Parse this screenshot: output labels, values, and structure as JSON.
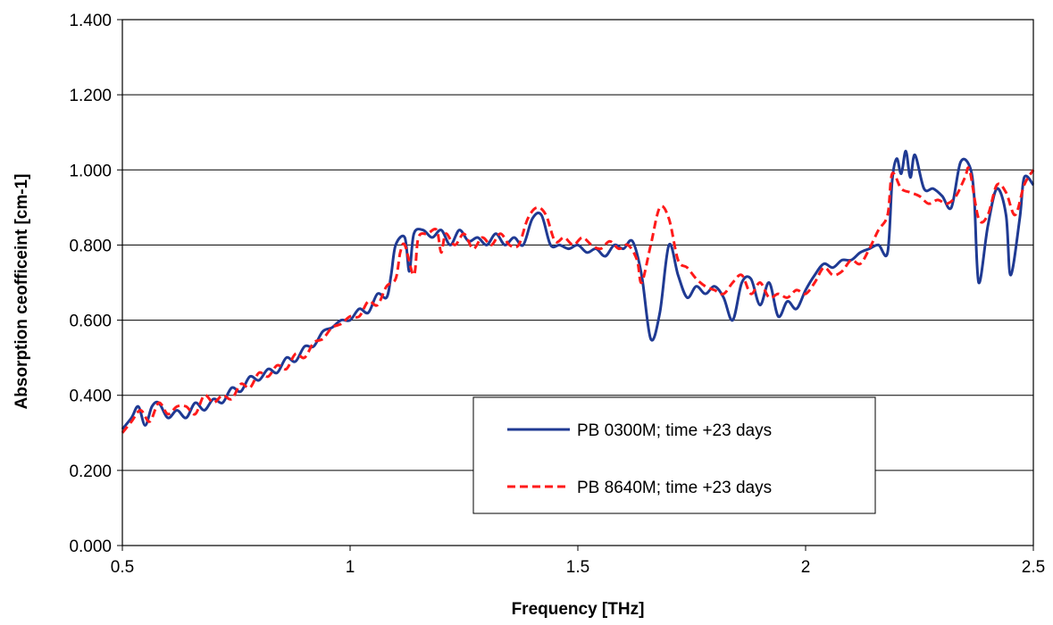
{
  "chart_data": {
    "type": "line",
    "title": "",
    "xlabel": "Frequency [THz]",
    "ylabel": "Absorption ceofficeint [cm-1]",
    "xlim": [
      0.5,
      2.5
    ],
    "ylim": [
      0.0,
      1.4
    ],
    "x_ticks": [
      "0.5",
      "1",
      "1.5",
      "2",
      "2.5"
    ],
    "y_ticks": [
      "0.000",
      "0.200",
      "0.400",
      "0.600",
      "0.800",
      "1.000",
      "1.200",
      "1.400"
    ],
    "grid": "horizontal",
    "legend_position": "bottom-center",
    "series": [
      {
        "name": "PB 0300M; time +23 days",
        "color": "#1f3a93",
        "style": "solid",
        "points": [
          [
            0.5,
            0.31
          ],
          [
            0.52,
            0.34
          ],
          [
            0.535,
            0.37
          ],
          [
            0.55,
            0.32
          ],
          [
            0.565,
            0.37
          ],
          [
            0.58,
            0.38
          ],
          [
            0.6,
            0.34
          ],
          [
            0.62,
            0.36
          ],
          [
            0.64,
            0.34
          ],
          [
            0.66,
            0.38
          ],
          [
            0.68,
            0.36
          ],
          [
            0.7,
            0.39
          ],
          [
            0.72,
            0.38
          ],
          [
            0.74,
            0.42
          ],
          [
            0.76,
            0.41
          ],
          [
            0.78,
            0.45
          ],
          [
            0.8,
            0.44
          ],
          [
            0.82,
            0.47
          ],
          [
            0.84,
            0.46
          ],
          [
            0.86,
            0.5
          ],
          [
            0.88,
            0.49
          ],
          [
            0.9,
            0.53
          ],
          [
            0.92,
            0.53
          ],
          [
            0.94,
            0.57
          ],
          [
            0.96,
            0.58
          ],
          [
            0.98,
            0.6
          ],
          [
            1.0,
            0.6
          ],
          [
            1.02,
            0.63
          ],
          [
            1.04,
            0.62
          ],
          [
            1.06,
            0.67
          ],
          [
            1.08,
            0.66
          ],
          [
            1.09,
            0.72
          ],
          [
            1.1,
            0.8
          ],
          [
            1.12,
            0.82
          ],
          [
            1.13,
            0.73
          ],
          [
            1.14,
            0.83
          ],
          [
            1.16,
            0.84
          ],
          [
            1.18,
            0.82
          ],
          [
            1.2,
            0.84
          ],
          [
            1.22,
            0.8
          ],
          [
            1.24,
            0.84
          ],
          [
            1.26,
            0.81
          ],
          [
            1.28,
            0.82
          ],
          [
            1.3,
            0.8
          ],
          [
            1.32,
            0.83
          ],
          [
            1.34,
            0.8
          ],
          [
            1.36,
            0.82
          ],
          [
            1.38,
            0.8
          ],
          [
            1.4,
            0.87
          ],
          [
            1.42,
            0.88
          ],
          [
            1.44,
            0.8
          ],
          [
            1.46,
            0.8
          ],
          [
            1.48,
            0.79
          ],
          [
            1.5,
            0.8
          ],
          [
            1.52,
            0.78
          ],
          [
            1.54,
            0.79
          ],
          [
            1.56,
            0.77
          ],
          [
            1.58,
            0.8
          ],
          [
            1.6,
            0.79
          ],
          [
            1.62,
            0.81
          ],
          [
            1.64,
            0.72
          ],
          [
            1.66,
            0.55
          ],
          [
            1.68,
            0.62
          ],
          [
            1.7,
            0.8
          ],
          [
            1.72,
            0.72
          ],
          [
            1.74,
            0.66
          ],
          [
            1.76,
            0.69
          ],
          [
            1.78,
            0.67
          ],
          [
            1.8,
            0.69
          ],
          [
            1.82,
            0.66
          ],
          [
            1.84,
            0.6
          ],
          [
            1.86,
            0.7
          ],
          [
            1.88,
            0.71
          ],
          [
            1.9,
            0.64
          ],
          [
            1.92,
            0.7
          ],
          [
            1.94,
            0.61
          ],
          [
            1.96,
            0.65
          ],
          [
            1.98,
            0.63
          ],
          [
            2.0,
            0.68
          ],
          [
            2.02,
            0.72
          ],
          [
            2.04,
            0.75
          ],
          [
            2.06,
            0.74
          ],
          [
            2.08,
            0.76
          ],
          [
            2.1,
            0.76
          ],
          [
            2.12,
            0.78
          ],
          [
            2.14,
            0.79
          ],
          [
            2.16,
            0.8
          ],
          [
            2.18,
            0.78
          ],
          [
            2.19,
            0.97
          ],
          [
            2.2,
            1.03
          ],
          [
            2.21,
            0.99
          ],
          [
            2.22,
            1.05
          ],
          [
            2.23,
            0.98
          ],
          [
            2.24,
            1.04
          ],
          [
            2.26,
            0.95
          ],
          [
            2.28,
            0.95
          ],
          [
            2.3,
            0.93
          ],
          [
            2.32,
            0.9
          ],
          [
            2.34,
            1.02
          ],
          [
            2.36,
            1.01
          ],
          [
            2.37,
            0.93
          ],
          [
            2.38,
            0.7
          ],
          [
            2.4,
            0.85
          ],
          [
            2.42,
            0.95
          ],
          [
            2.44,
            0.88
          ],
          [
            2.45,
            0.72
          ],
          [
            2.47,
            0.87
          ],
          [
            2.48,
            0.98
          ],
          [
            2.5,
            0.96
          ]
        ]
      },
      {
        "name": "PB 8640M; time +23 days",
        "color": "#ff1a1a",
        "style": "dashed",
        "points": [
          [
            0.5,
            0.3
          ],
          [
            0.52,
            0.33
          ],
          [
            0.54,
            0.36
          ],
          [
            0.56,
            0.33
          ],
          [
            0.58,
            0.38
          ],
          [
            0.6,
            0.35
          ],
          [
            0.62,
            0.37
          ],
          [
            0.64,
            0.37
          ],
          [
            0.66,
            0.35
          ],
          [
            0.68,
            0.4
          ],
          [
            0.7,
            0.38
          ],
          [
            0.72,
            0.4
          ],
          [
            0.74,
            0.39
          ],
          [
            0.76,
            0.43
          ],
          [
            0.78,
            0.42
          ],
          [
            0.8,
            0.46
          ],
          [
            0.82,
            0.45
          ],
          [
            0.84,
            0.48
          ],
          [
            0.86,
            0.47
          ],
          [
            0.88,
            0.51
          ],
          [
            0.9,
            0.5
          ],
          [
            0.92,
            0.54
          ],
          [
            0.94,
            0.55
          ],
          [
            0.96,
            0.58
          ],
          [
            0.98,
            0.59
          ],
          [
            1.0,
            0.61
          ],
          [
            1.02,
            0.61
          ],
          [
            1.04,
            0.65
          ],
          [
            1.06,
            0.64
          ],
          [
            1.08,
            0.69
          ],
          [
            1.1,
            0.71
          ],
          [
            1.11,
            0.78
          ],
          [
            1.12,
            0.8
          ],
          [
            1.14,
            0.72
          ],
          [
            1.15,
            0.82
          ],
          [
            1.17,
            0.83
          ],
          [
            1.19,
            0.84
          ],
          [
            1.2,
            0.78
          ],
          [
            1.21,
            0.83
          ],
          [
            1.23,
            0.8
          ],
          [
            1.25,
            0.83
          ],
          [
            1.27,
            0.79
          ],
          [
            1.29,
            0.82
          ],
          [
            1.31,
            0.8
          ],
          [
            1.33,
            0.83
          ],
          [
            1.35,
            0.8
          ],
          [
            1.37,
            0.8
          ],
          [
            1.39,
            0.87
          ],
          [
            1.41,
            0.9
          ],
          [
            1.43,
            0.88
          ],
          [
            1.45,
            0.81
          ],
          [
            1.47,
            0.82
          ],
          [
            1.49,
            0.8
          ],
          [
            1.51,
            0.82
          ],
          [
            1.53,
            0.8
          ],
          [
            1.55,
            0.79
          ],
          [
            1.57,
            0.81
          ],
          [
            1.59,
            0.79
          ],
          [
            1.61,
            0.8
          ],
          [
            1.63,
            0.76
          ],
          [
            1.64,
            0.7
          ],
          [
            1.66,
            0.8
          ],
          [
            1.68,
            0.9
          ],
          [
            1.7,
            0.87
          ],
          [
            1.72,
            0.76
          ],
          [
            1.74,
            0.74
          ],
          [
            1.76,
            0.71
          ],
          [
            1.78,
            0.69
          ],
          [
            1.8,
            0.68
          ],
          [
            1.82,
            0.67
          ],
          [
            1.84,
            0.7
          ],
          [
            1.86,
            0.72
          ],
          [
            1.88,
            0.67
          ],
          [
            1.9,
            0.7
          ],
          [
            1.92,
            0.66
          ],
          [
            1.94,
            0.67
          ],
          [
            1.96,
            0.66
          ],
          [
            1.98,
            0.68
          ],
          [
            2.0,
            0.67
          ],
          [
            2.02,
            0.7
          ],
          [
            2.04,
            0.74
          ],
          [
            2.06,
            0.72
          ],
          [
            2.08,
            0.73
          ],
          [
            2.1,
            0.76
          ],
          [
            2.12,
            0.75
          ],
          [
            2.14,
            0.79
          ],
          [
            2.16,
            0.84
          ],
          [
            2.18,
            0.88
          ],
          [
            2.19,
            0.99
          ],
          [
            2.21,
            0.95
          ],
          [
            2.23,
            0.94
          ],
          [
            2.25,
            0.93
          ],
          [
            2.27,
            0.91
          ],
          [
            2.29,
            0.92
          ],
          [
            2.31,
            0.91
          ],
          [
            2.33,
            0.93
          ],
          [
            2.35,
            0.98
          ],
          [
            2.36,
            1.0
          ],
          [
            2.38,
            0.87
          ],
          [
            2.4,
            0.88
          ],
          [
            2.42,
            0.96
          ],
          [
            2.44,
            0.94
          ],
          [
            2.46,
            0.88
          ],
          [
            2.48,
            0.96
          ],
          [
            2.5,
            1.0
          ]
        ]
      }
    ]
  }
}
